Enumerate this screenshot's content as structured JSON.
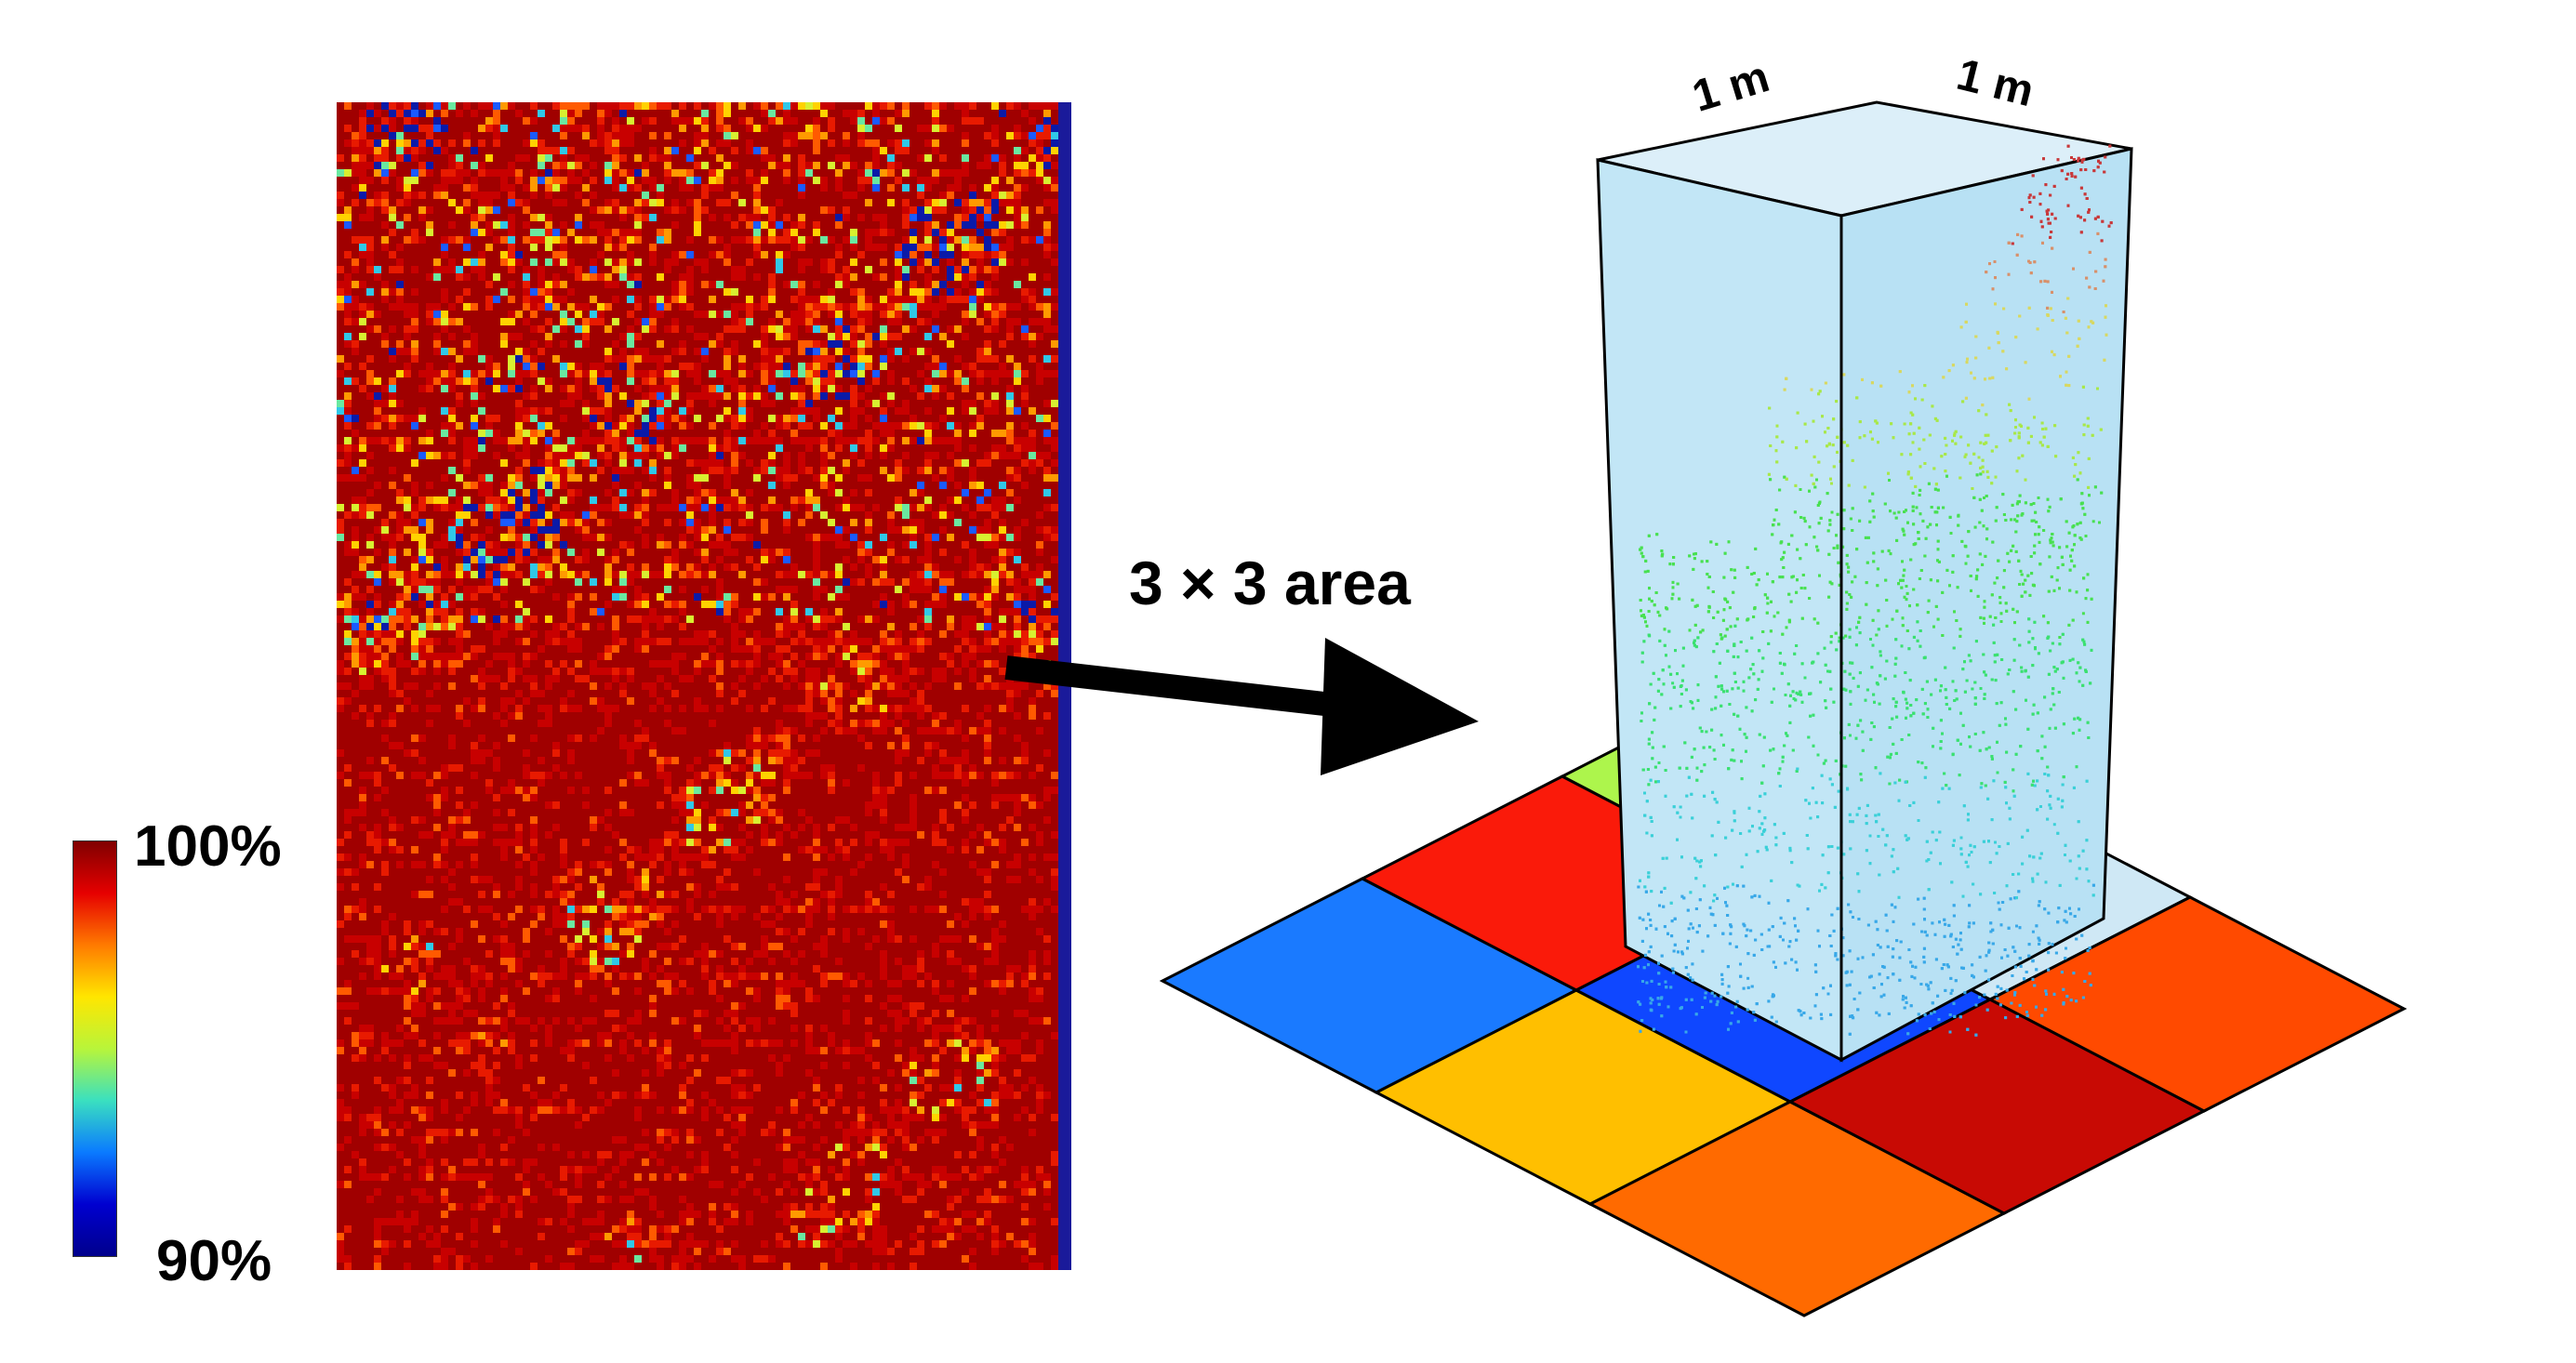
{
  "colorbar": {
    "max_label": "100%",
    "min_label": "90%",
    "colors": [
      "#800000",
      "#e60000",
      "#ff7a00",
      "#ffe600",
      "#b8f53a",
      "#3ae0c0",
      "#0a7aff",
      "#0000d0",
      "#00008c"
    ]
  },
  "arrow_label": "3 × 3 area",
  "box": {
    "width_label": "1 m",
    "depth_label": "1 m"
  },
  "grid_cells": [
    {
      "row": 0,
      "col": 0,
      "color": "#1a7aff"
    },
    {
      "row": 0,
      "col": 1,
      "color": "#fa1a0a"
    },
    {
      "row": 0,
      "col": 2,
      "color": "#adf54c"
    },
    {
      "row": 1,
      "col": 0,
      "color": "#ffbf00"
    },
    {
      "row": 1,
      "col": 1,
      "color": "#0f47ff"
    },
    {
      "row": 1,
      "col": 2,
      "color": "#cfe8f5"
    },
    {
      "row": 2,
      "col": 0,
      "color": "#ff6a00"
    },
    {
      "row": 2,
      "col": 1,
      "color": "#c80a04"
    },
    {
      "row": 2,
      "col": 2,
      "color": "#ff4a00"
    }
  ]
}
